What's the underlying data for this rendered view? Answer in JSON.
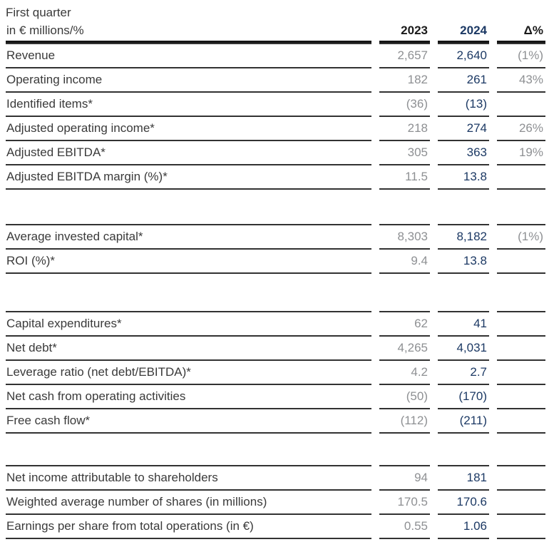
{
  "title": "First quarter",
  "table": {
    "unit_label": "in € millions/%",
    "columns": [
      "2023",
      "2024",
      "Δ%"
    ],
    "groups": [
      {
        "name": "income",
        "rows": [
          {
            "label": "Revenue",
            "v2023": "2,657",
            "v2024": "2,640",
            "delta": "(1%)"
          },
          {
            "label": "Operating income",
            "v2023": "182",
            "v2024": "261",
            "delta": "43%"
          },
          {
            "label": "Identified items*",
            "v2023": "(36)",
            "v2024": "(13)",
            "delta": ""
          },
          {
            "label": "Adjusted operating income*",
            "v2023": "218",
            "v2024": "274",
            "delta": "26%"
          },
          {
            "label": "Adjusted EBITDA*",
            "v2023": "305",
            "v2024": "363",
            "delta": "19%"
          },
          {
            "label": "Adjusted EBITDA margin (%)*",
            "v2023": "11.5",
            "v2024": "13.8",
            "delta": ""
          }
        ]
      },
      {
        "name": "invested-capital",
        "rows": [
          {
            "label": "Average invested capital*",
            "v2023": "8,303",
            "v2024": "8,182",
            "delta": "(1%)"
          },
          {
            "label": "ROI (%)*",
            "v2023": "9.4",
            "v2024": "13.8",
            "delta": ""
          }
        ]
      },
      {
        "name": "cash-and-debt",
        "rows": [
          {
            "label": "Capital expenditures*",
            "v2023": "62",
            "v2024": "41",
            "delta": ""
          },
          {
            "label": "Net debt*",
            "v2023": "4,265",
            "v2024": "4,031",
            "delta": ""
          },
          {
            "label": "Leverage ratio (net debt/EBITDA)*",
            "v2023": "4.2",
            "v2024": "2.7",
            "delta": ""
          },
          {
            "label": "Net cash from operating activities",
            "v2023": "(50)",
            "v2024": "(170)",
            "delta": ""
          },
          {
            "label": "Free cash flow*",
            "v2023": "(112)",
            "v2024": "(211)",
            "delta": ""
          }
        ]
      },
      {
        "name": "per-share",
        "rows": [
          {
            "label": "Net income attributable to shareholders",
            "v2023": "94",
            "v2024": "181",
            "delta": ""
          },
          {
            "label": "Weighted average number of shares (in millions)",
            "v2023": "170.5",
            "v2024": "170.6",
            "delta": ""
          },
          {
            "label": "Earnings per share from total operations (in €)",
            "v2023": "0.55",
            "v2024": "1.06",
            "delta": ""
          }
        ]
      }
    ]
  },
  "colors": {
    "value_2024_navy": "#1c3964",
    "value_muted_gray": "#8e9093",
    "row_line": "#323232",
    "header_line": "#141414"
  }
}
